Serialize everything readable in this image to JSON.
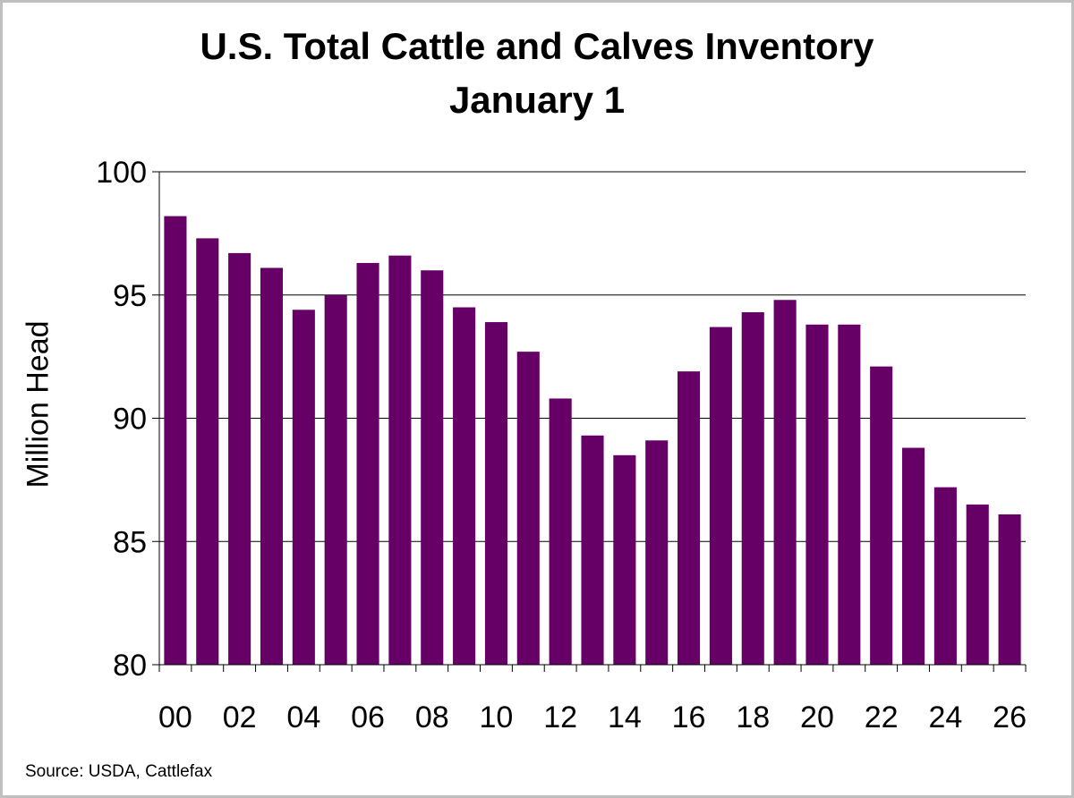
{
  "chart_data": {
    "type": "bar",
    "title": "U.S. Total Cattle and Calves Inventory",
    "subtitle": "January 1",
    "xlabel": "",
    "ylabel": "Million Head",
    "ylim": [
      80,
      100
    ],
    "yticks": [
      80,
      85,
      90,
      95,
      100
    ],
    "grid": true,
    "legend": "none",
    "bar_color": "#660066",
    "categories": [
      "00",
      "01",
      "02",
      "03",
      "04",
      "05",
      "06",
      "07",
      "08",
      "09",
      "10",
      "11",
      "12",
      "13",
      "14",
      "15",
      "16",
      "17",
      "18",
      "19",
      "20",
      "21",
      "22",
      "23",
      "24",
      "25",
      "26"
    ],
    "xtick_labels": [
      "00",
      "02",
      "04",
      "06",
      "08",
      "10",
      "12",
      "14",
      "16",
      "18",
      "20",
      "22",
      "24",
      "26"
    ],
    "values": [
      98.2,
      97.3,
      96.7,
      96.1,
      94.4,
      95.0,
      96.3,
      96.6,
      96.0,
      94.5,
      93.9,
      92.7,
      90.8,
      89.3,
      88.5,
      89.1,
      91.9,
      93.7,
      94.3,
      94.8,
      93.8,
      93.8,
      92.1,
      88.8,
      87.2,
      86.5,
      86.1
    ]
  },
  "source_text": "Source:  USDA, Cattlefax"
}
